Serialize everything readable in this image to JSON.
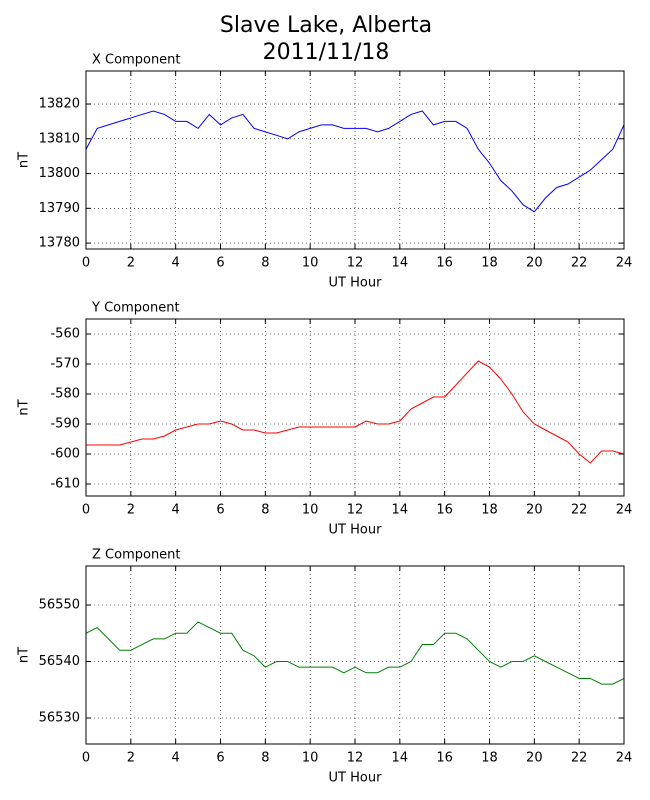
{
  "title": "Slave Lake, Alberta",
  "subtitle": "2011/11/18",
  "chart_data": [
    {
      "type": "line",
      "title": "X Component",
      "x_label": "UT Hour",
      "y_label": "nT",
      "color": "#0000ff",
      "x": [
        0,
        0.5,
        1,
        1.5,
        2,
        2.5,
        3,
        3.5,
        4,
        4.5,
        5,
        5.5,
        6,
        6.5,
        7,
        7.5,
        8,
        8.5,
        9,
        9.5,
        10,
        10.5,
        11,
        11.5,
        12,
        12.5,
        13,
        13.5,
        14,
        14.5,
        15,
        15.5,
        16,
        16.5,
        17,
        17.5,
        18,
        18.5,
        19,
        19.5,
        20,
        20.5,
        21,
        21.5,
        22,
        22.5,
        23,
        23.5,
        24
      ],
      "values": [
        13807,
        13813,
        13814,
        13815,
        13816,
        13817,
        13818,
        13817,
        13815,
        13815,
        13813,
        13817,
        13814,
        13816,
        13817,
        13813,
        13812,
        13811,
        13810,
        13812,
        13813,
        13814,
        13814,
        13813,
        13813,
        13813,
        13812,
        13813,
        13815,
        13817,
        13818,
        13814,
        13815,
        13815,
        13813,
        13807,
        13803,
        13798,
        13795,
        13791,
        13789,
        13793,
        13796,
        13797,
        13799,
        13801,
        13804,
        13807,
        13814
      ],
      "xlim": [
        0,
        24
      ],
      "xticks": [
        0,
        2,
        4,
        6,
        8,
        10,
        12,
        14,
        16,
        18,
        20,
        22,
        24
      ],
      "ylim": [
        13778.3,
        13829.5
      ],
      "yticks": [
        13780,
        13790,
        13800,
        13810,
        13820
      ],
      "grid": true
    },
    {
      "type": "line",
      "title": "Y Component",
      "x_label": "UT Hour",
      "y_label": "nT",
      "color": "#ff0000",
      "x": [
        0,
        0.5,
        1,
        1.5,
        2,
        2.5,
        3,
        3.5,
        4,
        4.5,
        5,
        5.5,
        6,
        6.5,
        7,
        7.5,
        8,
        8.5,
        9,
        9.5,
        10,
        10.5,
        11,
        11.5,
        12,
        12.5,
        13,
        13.5,
        14,
        14.5,
        15,
        15.5,
        16,
        16.5,
        17,
        17.5,
        18,
        18.5,
        19,
        19.5,
        20,
        20.5,
        21,
        21.5,
        22,
        22.5,
        23,
        23.5,
        24
      ],
      "values": [
        -597,
        -597,
        -597,
        -597,
        -596,
        -595,
        -595,
        -594,
        -592,
        -591,
        -590,
        -590,
        -589,
        -590,
        -592,
        -592,
        -593,
        -593,
        -592,
        -591,
        -591,
        -591,
        -591,
        -591,
        -591,
        -589,
        -590,
        -590,
        -589,
        -585,
        -583,
        -581,
        -581,
        -577,
        -573,
        -569,
        -571,
        -575,
        -580,
        -586,
        -590,
        -592,
        -594,
        -596,
        -600,
        -603,
        -599,
        -599,
        -600
      ],
      "xlim": [
        0,
        24
      ],
      "xticks": [
        0,
        2,
        4,
        6,
        8,
        10,
        12,
        14,
        16,
        18,
        20,
        22,
        24
      ],
      "ylim": [
        -614,
        -555
      ],
      "yticks": [
        -610,
        -600,
        -590,
        -580,
        -570,
        -560
      ],
      "grid": true
    },
    {
      "type": "line",
      "title": "Z Component",
      "x_label": "UT Hour",
      "y_label": "nT",
      "color": "#008000",
      "x": [
        0,
        0.5,
        1,
        1.5,
        2,
        2.5,
        3,
        3.5,
        4,
        4.5,
        5,
        5.5,
        6,
        6.5,
        7,
        7.5,
        8,
        8.5,
        9,
        9.5,
        10,
        10.5,
        11,
        11.5,
        12,
        12.5,
        13,
        13.5,
        14,
        14.5,
        15,
        15.5,
        16,
        16.5,
        17,
        17.5,
        18,
        18.5,
        19,
        19.5,
        20,
        20.5,
        21,
        21.5,
        22,
        22.5,
        23,
        23.5,
        24
      ],
      "values": [
        56545,
        56546,
        56544,
        56542,
        56542,
        56543,
        56544,
        56544,
        56545,
        56545,
        56547,
        56546,
        56545,
        56545,
        56542,
        56541,
        56539,
        56540,
        56540,
        56539,
        56539,
        56539,
        56539,
        56538,
        56539,
        56538,
        56538,
        56539,
        56539,
        56540,
        56543,
        56543,
        56545,
        56545,
        56544,
        56542,
        56540,
        56539,
        56540,
        56540,
        56541,
        56540,
        56539,
        56538,
        56537,
        56537,
        56536,
        56536,
        56537
      ],
      "xlim": [
        0,
        24
      ],
      "xticks": [
        0,
        2,
        4,
        6,
        8,
        10,
        12,
        14,
        16,
        18,
        20,
        22,
        24
      ],
      "ylim": [
        56525.4,
        56556.9
      ],
      "yticks": [
        56530,
        56540,
        56550
      ],
      "grid": true
    }
  ]
}
